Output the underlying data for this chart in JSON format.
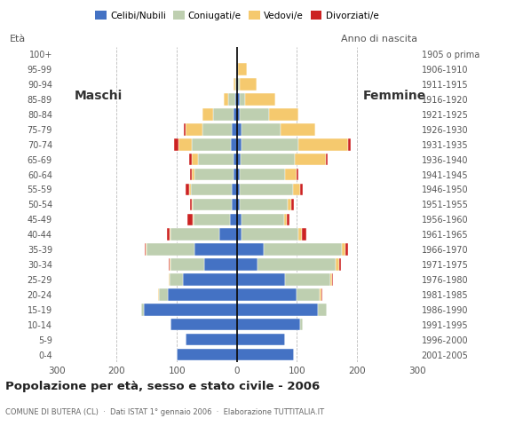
{
  "age_groups": [
    "0-4",
    "5-9",
    "10-14",
    "15-19",
    "20-24",
    "25-29",
    "30-34",
    "35-39",
    "40-44",
    "45-49",
    "50-54",
    "55-59",
    "60-64",
    "65-69",
    "70-74",
    "75-79",
    "80-84",
    "85-89",
    "90-94",
    "95-99",
    "100+"
  ],
  "birth_years": [
    "2001-2005",
    "1996-2000",
    "1991-1995",
    "1986-1990",
    "1981-1985",
    "1976-1980",
    "1971-1975",
    "1966-1970",
    "1961-1965",
    "1956-1960",
    "1951-1955",
    "1946-1950",
    "1941-1945",
    "1936-1940",
    "1931-1935",
    "1926-1930",
    "1921-1925",
    "1916-1920",
    "1911-1915",
    "1906-1910",
    "1905 o prima"
  ],
  "male_celibe": [
    100,
    85,
    110,
    155,
    115,
    90,
    55,
    70,
    30,
    12,
    8,
    8,
    5,
    5,
    10,
    8,
    5,
    2,
    0,
    0,
    0
  ],
  "male_coniugato": [
    0,
    0,
    0,
    5,
    15,
    22,
    55,
    80,
    80,
    60,
    65,
    68,
    65,
    60,
    65,
    50,
    35,
    12,
    3,
    0,
    0
  ],
  "male_vedovo": [
    0,
    0,
    0,
    0,
    1,
    2,
    2,
    2,
    2,
    2,
    2,
    4,
    5,
    10,
    22,
    28,
    18,
    8,
    2,
    0,
    0
  ],
  "male_divorziato": [
    0,
    0,
    0,
    0,
    0,
    0,
    2,
    2,
    5,
    8,
    3,
    5,
    3,
    5,
    8,
    3,
    0,
    0,
    0,
    0,
    0
  ],
  "female_nubile": [
    95,
    80,
    105,
    135,
    100,
    80,
    35,
    45,
    8,
    8,
    5,
    5,
    5,
    6,
    8,
    7,
    4,
    4,
    2,
    2,
    0
  ],
  "female_coniugata": [
    0,
    0,
    5,
    14,
    38,
    75,
    130,
    130,
    95,
    70,
    80,
    88,
    75,
    90,
    95,
    65,
    50,
    10,
    3,
    0,
    0
  ],
  "female_vedova": [
    0,
    0,
    0,
    1,
    2,
    3,
    5,
    5,
    5,
    5,
    5,
    12,
    20,
    52,
    82,
    58,
    48,
    50,
    28,
    15,
    0
  ],
  "female_divorziata": [
    0,
    0,
    0,
    0,
    2,
    2,
    3,
    5,
    8,
    5,
    5,
    5,
    2,
    3,
    5,
    0,
    0,
    0,
    0,
    0,
    0
  ],
  "colors": {
    "celibe": "#4472C4",
    "coniugato": "#BECFB0",
    "vedovo": "#F5C96E",
    "divorziato": "#CC2222"
  },
  "xlim": 300,
  "title": "Popolazione per età, sesso e stato civile - 2006",
  "subtitle": "COMUNE DI BUTERA (CL)  ·  Dati ISTAT 1° gennaio 2006  ·  Elaborazione TUTTITALIA.IT",
  "legend_labels": [
    "Celibi/Nubili",
    "Coniugati/e",
    "Vedovi/e",
    "Divorziati/e"
  ]
}
